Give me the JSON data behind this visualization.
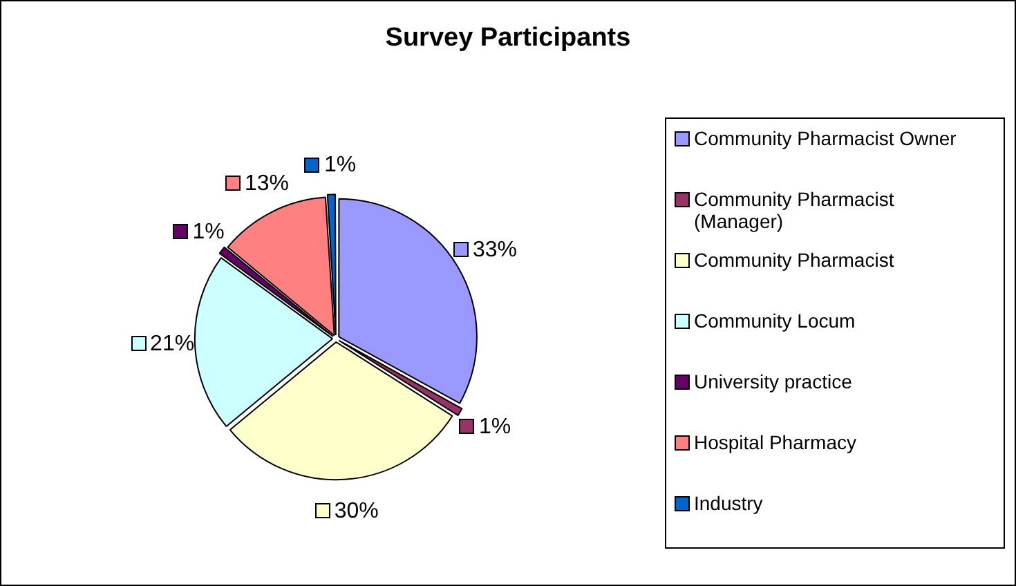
{
  "chart_data": {
    "type": "pie",
    "title": "Survey Participants",
    "categories": [
      "Community Pharmacist Owner",
      "Community Pharmacist (Manager)",
      "Community Pharmacist",
      "Community Locum",
      "University practice",
      "Hospital Pharmacy",
      "Industry"
    ],
    "values": [
      33,
      1,
      30,
      21,
      1,
      13,
      1
    ],
    "colors": [
      "#9999ff",
      "#993366",
      "#ffffcc",
      "#ccffff",
      "#660066",
      "#ff8080",
      "#0066cc"
    ],
    "value_labels": [
      "33%",
      "1%",
      "30%",
      "21%",
      "1%",
      "13%",
      "1%"
    ],
    "legend": "right"
  }
}
